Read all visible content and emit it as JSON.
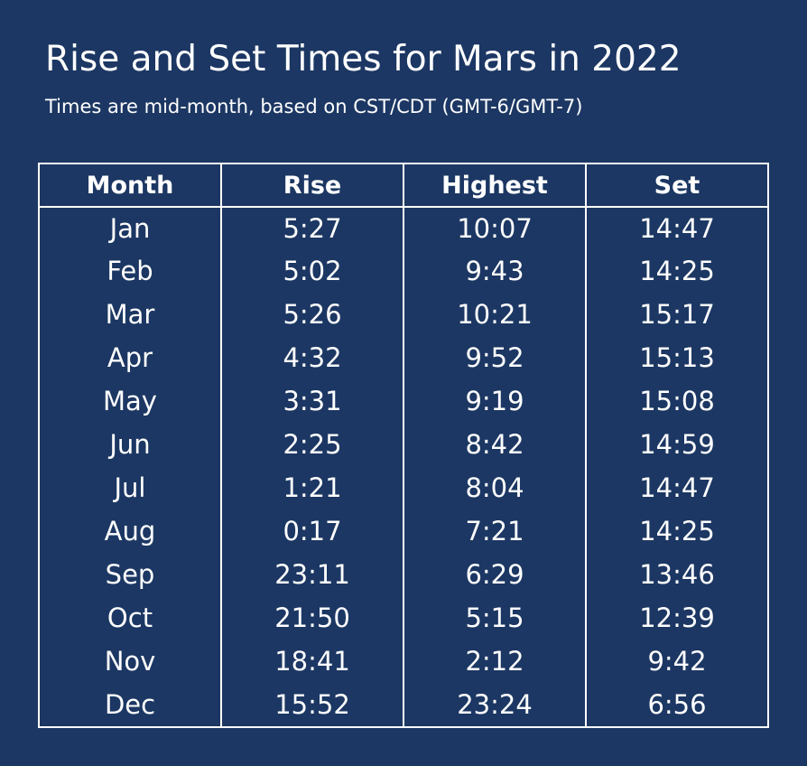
{
  "chart_data": {
    "type": "table",
    "title": "Rise and Set Times for Mars in 2022",
    "subtitle": "Times are mid-month, based on CST/CDT (GMT-6/GMT-7)",
    "columns": [
      "Month",
      "Rise",
      "Highest",
      "Set"
    ],
    "rows": [
      [
        "Jan",
        "5:27",
        "10:07",
        "14:47"
      ],
      [
        "Feb",
        "5:02",
        "9:43",
        "14:25"
      ],
      [
        "Mar",
        "5:26",
        "10:21",
        "15:17"
      ],
      [
        "Apr",
        "4:32",
        "9:52",
        "15:13"
      ],
      [
        "May",
        "3:31",
        "9:19",
        "15:08"
      ],
      [
        "Jun",
        "2:25",
        "8:42",
        "14:59"
      ],
      [
        "Jul",
        "1:21",
        "8:04",
        "14:47"
      ],
      [
        "Aug",
        "0:17",
        "7:21",
        "14:25"
      ],
      [
        "Sep",
        "23:11",
        "6:29",
        "13:46"
      ],
      [
        "Oct",
        "21:50",
        "5:15",
        "12:39"
      ],
      [
        "Nov",
        "18:41",
        "2:12",
        "9:42"
      ],
      [
        "Dec",
        "15:52",
        "23:24",
        "6:56"
      ]
    ]
  },
  "colors": {
    "background": "#1c3763",
    "text": "#ffffff",
    "border": "#ffffff"
  }
}
